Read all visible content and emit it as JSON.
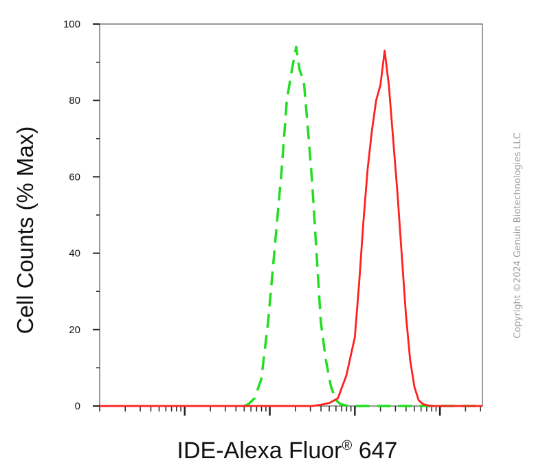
{
  "chart_data": {
    "type": "line",
    "title": "",
    "xlabel": "IDE-Alexa Fluor",
    "xlabel_superscript": "®",
    "xlabel_suffix": " 647",
    "ylabel": "Cell Counts (% Max)",
    "ylim": [
      0,
      100
    ],
    "yticks": [
      "0",
      "20",
      "40",
      "60",
      "80",
      "100"
    ],
    "x_scale": "log",
    "xlim": [
      0,
      4.5
    ],
    "grid": false,
    "legend": "none",
    "series": [
      {
        "color": "#22dd22",
        "style": "dashed",
        "x": [
          1.7,
          1.75,
          1.82,
          1.9,
          1.98,
          2.06,
          2.14,
          2.2,
          2.26,
          2.31,
          2.35,
          2.4,
          2.45,
          2.5,
          2.55,
          2.6,
          2.66,
          2.72,
          2.78,
          2.83,
          2.88,
          2.93,
          3.0,
          3.1,
          3.5,
          4.0,
          4.5
        ],
        "y": [
          0,
          0.5,
          2,
          7,
          22,
          42,
          62,
          80,
          88,
          94,
          88,
          85,
          72,
          58,
          40,
          22,
          12,
          5,
          1.5,
          0.5,
          0.2,
          0,
          0,
          0,
          0,
          0,
          0
        ]
      },
      {
        "color": "#ff2020",
        "style": "solid",
        "x": [
          0,
          0.5,
          1.0,
          1.5,
          2.0,
          2.3,
          2.5,
          2.6,
          2.7,
          2.8,
          2.9,
          3.0,
          3.05,
          3.1,
          3.15,
          3.2,
          3.25,
          3.3,
          3.35,
          3.4,
          3.45,
          3.5,
          3.55,
          3.6,
          3.65,
          3.7,
          3.75,
          3.8,
          3.85,
          3.9,
          3.95,
          4.0,
          4.1,
          4.2,
          4.5
        ],
        "y": [
          0,
          0,
          0,
          0,
          0,
          0,
          0,
          0.3,
          0.8,
          2,
          8,
          18,
          32,
          48,
          62,
          72,
          80,
          84,
          93,
          84,
          70,
          56,
          40,
          24,
          12,
          5,
          1.5,
          0.5,
          0.2,
          0,
          0,
          0,
          0,
          0,
          0
        ]
      }
    ]
  },
  "copyright": "Copyright ©2024 Genuin Biotechnologies LLC"
}
